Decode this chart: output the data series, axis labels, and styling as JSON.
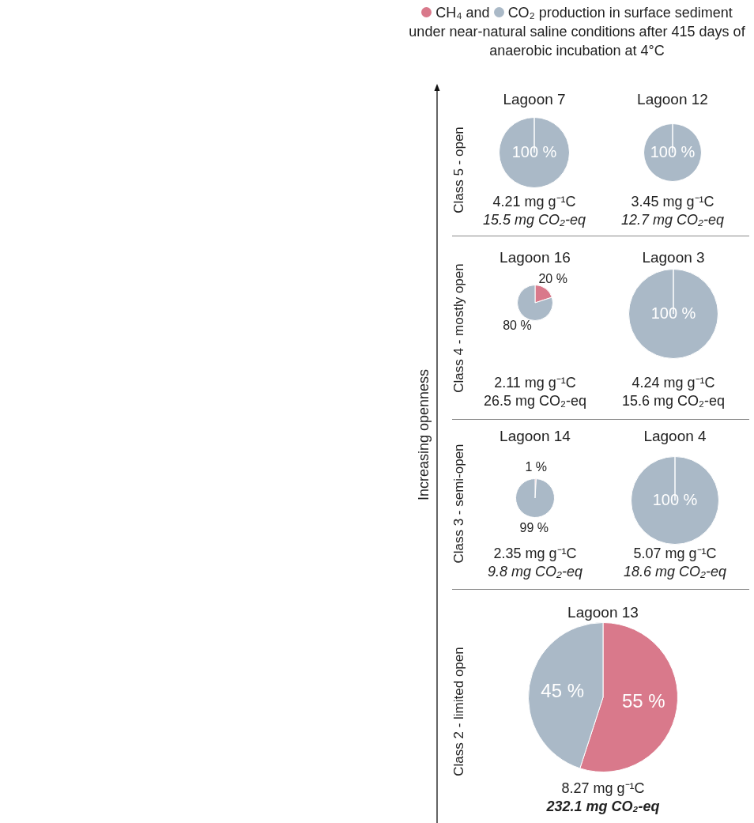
{
  "chart_data": [
    {
      "type": "other",
      "legend": "top",
      "ylabel": "Increasing openness",
      "series": [
        {
          "name": "CH₄",
          "color": "#d9798b"
        },
        {
          "name": "CO₂",
          "color": "#aab9c7"
        }
      ],
      "annotations": [
        "and",
        "production in surface sediment under near-natural saline conditions after 415 days of anaerobic incubation at 4°C",
        "Class 5 - open",
        "Class 4 - mostly open",
        "Class 3 - semi-open",
        "Class 2 - limited open"
      ]
    },
    {
      "type": "pie",
      "title": "Lagoon 7",
      "categories": [
        null,
        null
      ],
      "values": [
        0,
        100
      ],
      "colors": [
        "#d9798b",
        "#aab9c7"
      ],
      "value_labels": [
        null,
        "100 %"
      ],
      "annotations": [
        "4.21 mg g⁻¹C",
        "15.5 mg CO₂-eq"
      ]
    },
    {
      "type": "pie",
      "title": "Lagoon 12",
      "categories": [
        null,
        null
      ],
      "values": [
        0,
        100
      ],
      "colors": [
        "#d9798b",
        "#aab9c7"
      ],
      "value_labels": [
        null,
        "100 %"
      ],
      "annotations": [
        "3.45 mg g⁻¹C",
        "12.7 mg CO₂-eq"
      ]
    },
    {
      "type": "pie",
      "title": "Lagoon 16",
      "categories": [
        null,
        null
      ],
      "values": [
        20,
        80
      ],
      "colors": [
        "#d9798b",
        "#aab9c7"
      ],
      "value_labels": [
        "20 %",
        "80 %"
      ],
      "annotations": [
        "2.11 mg g⁻¹C",
        "26.5 mg CO₂-eq"
      ]
    },
    {
      "type": "pie",
      "title": "Lagoon 3",
      "categories": [
        null,
        null
      ],
      "values": [
        0,
        100
      ],
      "colors": [
        "#d9798b",
        "#aab9c7"
      ],
      "value_labels": [
        null,
        "100 %"
      ],
      "annotations": [
        "4.24 mg g⁻¹C",
        "15.6 mg CO₂-eq"
      ]
    },
    {
      "type": "pie",
      "title": "Lagoon 14",
      "categories": [
        null,
        null
      ],
      "values": [
        1,
        99
      ],
      "colors": [
        "#d9798b",
        "#aab9c7"
      ],
      "value_labels": [
        "1 %",
        "99 %"
      ],
      "annotations": [
        "2.35 mg g⁻¹C",
        "9.8 mg CO₂-eq"
      ]
    },
    {
      "type": "pie",
      "title": "Lagoon 4",
      "categories": [
        null,
        null
      ],
      "values": [
        0,
        100
      ],
      "colors": [
        "#d9798b",
        "#aab9c7"
      ],
      "value_labels": [
        null,
        "100 %"
      ],
      "annotations": [
        "5.07 mg g⁻¹C",
        "18.6 mg CO₂-eq"
      ]
    },
    {
      "type": "pie",
      "title": "Lagoon 13",
      "categories": [
        null,
        null
      ],
      "values": [
        55,
        45
      ],
      "colors": [
        "#d9798b",
        "#aab9c7"
      ],
      "value_labels": [
        "55 %",
        "45 %"
      ],
      "annotations": [
        "8.27 mg g⁻¹C",
        "232.1 mg CO₂-eq"
      ]
    }
  ]
}
